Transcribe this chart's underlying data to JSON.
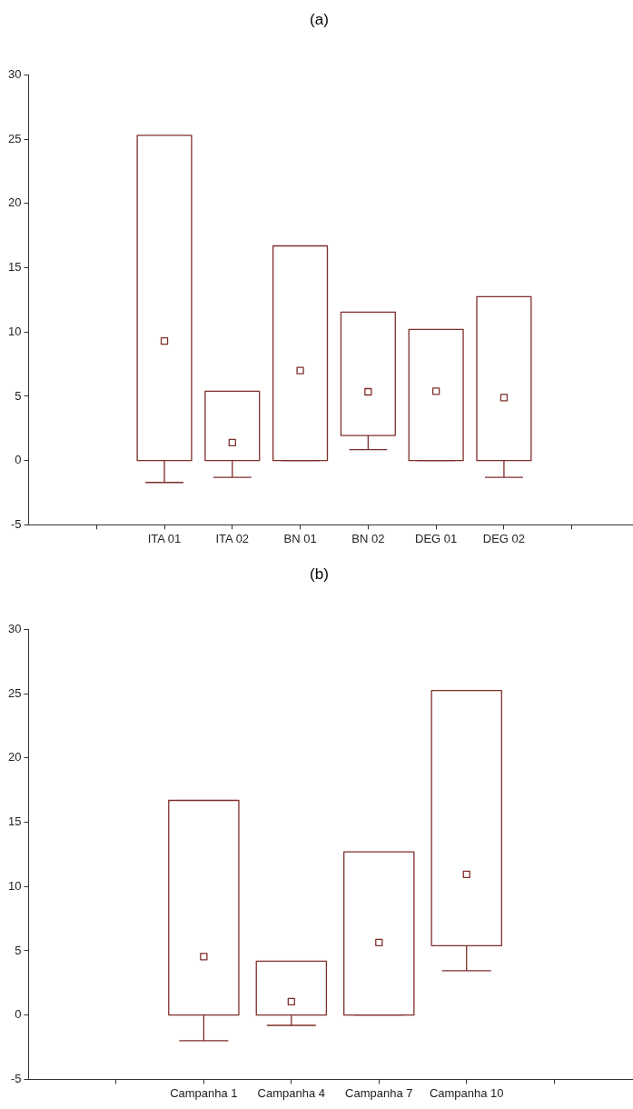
{
  "chart_data": [
    {
      "type": "box",
      "title": "(a)",
      "categories": [
        null,
        "ITA 01",
        "ITA 02",
        "BN 01",
        "BN 02",
        "DEG 01",
        "DEG 02",
        null
      ],
      "color": "#7f2f2a",
      "ylim": [
        -5,
        30
      ],
      "yticks": [
        -5,
        0,
        5,
        10,
        15,
        20,
        25,
        30
      ],
      "grid": false,
      "legend": false,
      "boxes": [
        null,
        {
          "low": -1.7,
          "q1": 0,
          "median": 9.3,
          "q3": 25.3,
          "high": 25.3
        },
        {
          "low": -1.3,
          "q1": 0,
          "median": 1.4,
          "q3": 5.4,
          "high": 5.4
        },
        {
          "low": 0,
          "q1": 0,
          "median": 7.0,
          "q3": 16.7,
          "high": 16.7
        },
        {
          "low": 0.85,
          "q1": 1.95,
          "median": 5.35,
          "q3": 11.55,
          "high": 11.55
        },
        {
          "low": 0,
          "q1": 0,
          "median": 5.4,
          "q3": 10.2,
          "high": 10.2
        },
        {
          "low": -1.3,
          "q1": 0,
          "median": 4.9,
          "q3": 12.75,
          "high": 12.75
        },
        null
      ]
    },
    {
      "type": "box",
      "title": "(b)",
      "categories": [
        null,
        "Campanha 1",
        "Campanha 4",
        "Campanha 7",
        "Campanha 10",
        null
      ],
      "color": "#7f2f2a",
      "ylim": [
        -5,
        30
      ],
      "yticks": [
        -5,
        0,
        5,
        10,
        15,
        20,
        25,
        30
      ],
      "grid": false,
      "legend": false,
      "boxes": [
        null,
        {
          "low": -2.0,
          "q1": 0,
          "median": 4.55,
          "q3": 16.7,
          "high": 16.7
        },
        {
          "low": -0.8,
          "q1": 0,
          "median": 1.05,
          "q3": 4.2,
          "high": 4.2
        },
        {
          "low": 0,
          "q1": 0,
          "median": 5.65,
          "q3": 12.7,
          "high": 12.7
        },
        {
          "low": 3.45,
          "q1": 5.4,
          "median": 10.95,
          "q3": 25.25,
          "high": 25.25
        },
        null
      ]
    }
  ]
}
